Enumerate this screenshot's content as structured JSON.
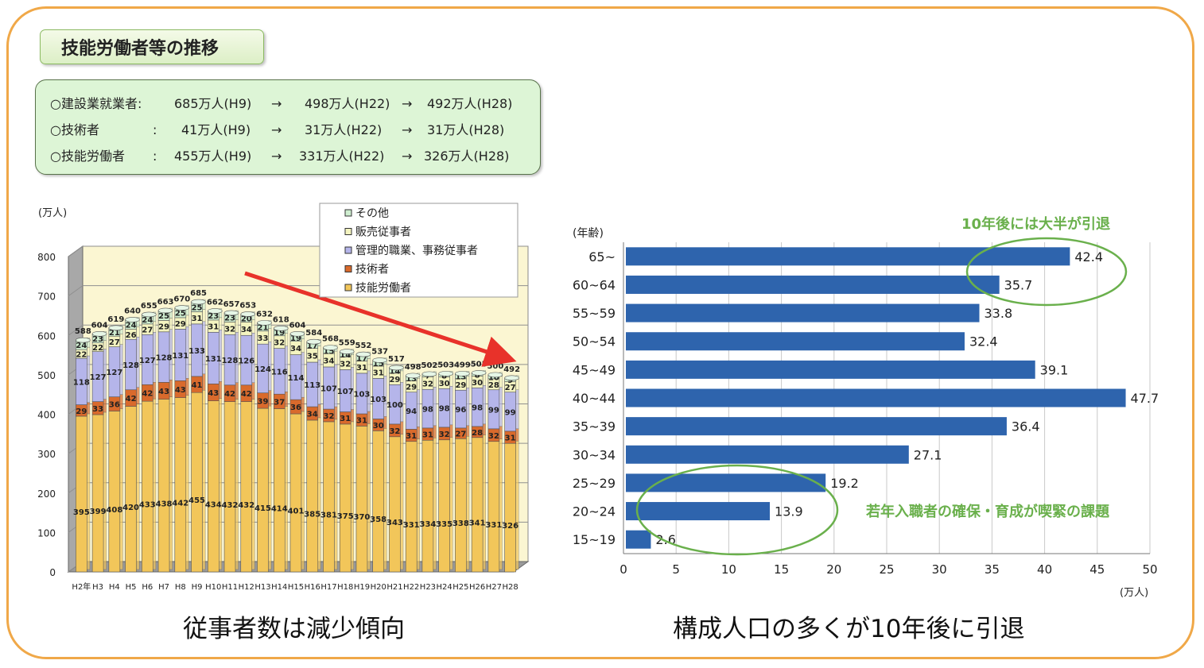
{
  "page_title": "技能労働者等の推移",
  "summary": [
    {
      "label": "○建設業就業者:",
      "h9": "685万人(H9)",
      "arrow1": "→",
      "h22": "498万人(H22)",
      "arrow2": "→",
      "h28": "492万人(H28)"
    },
    {
      "label": "○技術者",
      "sep": ":",
      "h9": "41万人(H9)",
      "arrow1": "→",
      "h22": "31万人(H22)",
      "arrow2": "→",
      "h28": "31万人(H28)"
    },
    {
      "label": "○技能労働者",
      "sep": ":",
      "h9": "455万人(H9)",
      "arrow1": "→",
      "h22": "331万人(H22)",
      "arrow2": "→",
      "h28": "326万人(H28)"
    }
  ],
  "captions": {
    "left": "従事者数は減少傾向",
    "right": "構成人口の多くが10年後に引退"
  },
  "chart_data": [
    {
      "type": "bar",
      "stacked": true,
      "unit_label": "(万人)",
      "ylim": [
        0,
        800
      ],
      "yticks": [
        0,
        100,
        200,
        300,
        400,
        500,
        600,
        700,
        800
      ],
      "categories": [
        "H2年",
        "H3",
        "H4",
        "H5",
        "H6",
        "H7",
        "H8",
        "H9",
        "H10",
        "H11",
        "H12",
        "H13",
        "H14",
        "H15",
        "H16",
        "H17",
        "H18",
        "H19",
        "H20",
        "H21",
        "H22",
        "H23",
        "H24",
        "H25",
        "H26",
        "H27",
        "H28"
      ],
      "series": [
        {
          "name": "技能労働者",
          "color": "#f2c65a",
          "values": [
            395,
            399,
            408,
            420,
            433,
            438,
            442,
            455,
            434,
            432,
            432,
            415,
            414,
            401,
            385,
            381,
            375,
            370,
            358,
            343,
            331,
            334,
            335,
            338,
            341,
            331,
            326
          ]
        },
        {
          "name": "技術者",
          "color": "#d96a2c",
          "values": [
            29,
            33,
            36,
            42,
            42,
            43,
            43,
            41,
            43,
            42,
            42,
            39,
            37,
            36,
            34,
            32,
            31,
            31,
            30,
            32,
            31,
            31,
            32,
            27,
            28,
            32,
            31
          ]
        },
        {
          "name": "管理的職業、事務従事者",
          "color": "#b5b5ea",
          "values": [
            118,
            127,
            127,
            128,
            127,
            128,
            131,
            133,
            131,
            128,
            126,
            124,
            116,
            114,
            113,
            107,
            107,
            103,
            103,
            100,
            94,
            98,
            98,
            96,
            98,
            99,
            99
          ]
        },
        {
          "name": "販売従事者",
          "color": "#f4f4c0",
          "values": [
            22,
            22,
            27,
            26,
            27,
            29,
            29,
            31,
            31,
            32,
            34,
            33,
            32,
            34,
            35,
            34,
            32,
            31,
            31,
            29,
            29,
            32,
            30,
            29,
            30,
            28,
            27
          ]
        },
        {
          "name": "その他",
          "color": "#cfeed0",
          "values": [
            24,
            23,
            21,
            24,
            24,
            25,
            25,
            25,
            23,
            23,
            20,
            21,
            19,
            19,
            17,
            15,
            14,
            17,
            15,
            14,
            13,
            7,
            8,
            13,
            8,
            10,
            9
          ]
        }
      ],
      "totals": [
        588,
        604,
        619,
        640,
        655,
        663,
        670,
        685,
        662,
        657,
        653,
        632,
        618,
        604,
        584,
        568,
        559,
        552,
        537,
        517,
        498,
        502,
        503,
        499,
        505,
        500,
        492
      ]
    },
    {
      "type": "bar",
      "orientation": "horizontal",
      "ylabel": "(年齢)",
      "xlabel": "(万人)",
      "xlim": [
        0,
        50
      ],
      "xticks": [
        0,
        5,
        10,
        15,
        20,
        25,
        30,
        35,
        40,
        45,
        50
      ],
      "categories": [
        "65~",
        "60~64",
        "55~59",
        "50~54",
        "45~49",
        "40~44",
        "35~39",
        "30~34",
        "25~29",
        "20~24",
        "15~19"
      ],
      "values": [
        42.4,
        35.7,
        33.8,
        32.4,
        39.1,
        47.7,
        36.4,
        27.1,
        19.2,
        13.9,
        2.6
      ],
      "value_labels": [
        "42.4",
        "35.7",
        "33.8",
        "32.4",
        "39.1",
        "47.7",
        "36.4",
        "27.1",
        "19.2",
        "13.9",
        "2.6"
      ],
      "color": "#2e64ad",
      "annotations": [
        "10年後には大半が引退",
        "若年入職者の確保・育成が喫緊の課題"
      ],
      "annotation_color": "#6ab04c"
    }
  ]
}
